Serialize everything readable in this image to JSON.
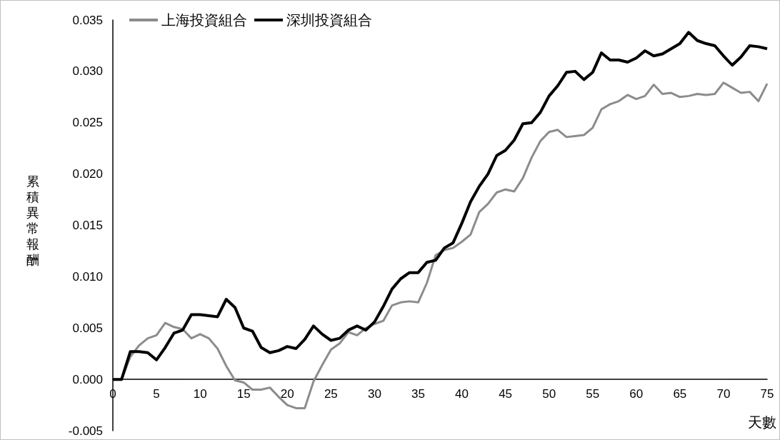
{
  "chart_data": {
    "type": "line",
    "xlabel": "天數",
    "ylabel": "累積異常報酬",
    "x": [
      0,
      1,
      2,
      3,
      4,
      5,
      6,
      7,
      8,
      9,
      10,
      11,
      12,
      13,
      14,
      15,
      16,
      17,
      18,
      19,
      20,
      21,
      22,
      23,
      24,
      25,
      26,
      27,
      28,
      29,
      30,
      31,
      32,
      33,
      34,
      35,
      36,
      37,
      38,
      39,
      40,
      41,
      42,
      43,
      44,
      45,
      46,
      47,
      48,
      49,
      50,
      51,
      52,
      53,
      54,
      55,
      56,
      57,
      58,
      59,
      60,
      61,
      62,
      63,
      64,
      65,
      66,
      67,
      68,
      69,
      70,
      71,
      72,
      73,
      74,
      75
    ],
    "series": [
      {
        "name": "上海投資組合",
        "color": "#8c8c8c",
        "values": [
          0,
          0,
          0.0022,
          0.0033,
          0.004,
          0.0043,
          0.0055,
          0.0051,
          0.0049,
          0.004,
          0.0044,
          0.004,
          0.003,
          0.0013,
          -0.0001,
          -0.0003,
          -0.001,
          -0.001,
          -0.0008,
          -0.0017,
          -0.0025,
          -0.0028,
          -0.0028,
          -0.0002,
          0.0014,
          0.0029,
          0.0035,
          0.0046,
          0.0043,
          0.005,
          0.0054,
          0.0057,
          0.0072,
          0.0075,
          0.0076,
          0.0075,
          0.0094,
          0.0121,
          0.0126,
          0.0128,
          0.0134,
          0.0141,
          0.0163,
          0.0171,
          0.0182,
          0.0185,
          0.0183,
          0.0196,
          0.0216,
          0.0232,
          0.0241,
          0.0243,
          0.0236,
          0.0237,
          0.0238,
          0.0245,
          0.0263,
          0.0268,
          0.0271,
          0.0277,
          0.0273,
          0.0276,
          0.0287,
          0.0278,
          0.0279,
          0.0275,
          0.0276,
          0.0278,
          0.0277,
          0.0278,
          0.0289,
          0.0284,
          0.0279,
          0.028,
          0.0271,
          0.0288
        ]
      },
      {
        "name": "深圳投資組合",
        "color": "#000000",
        "values": [
          0,
          0,
          0.0027,
          0.0027,
          0.0026,
          0.0019,
          0.0031,
          0.0045,
          0.0048,
          0.0063,
          0.0063,
          0.0062,
          0.0061,
          0.0078,
          0.007,
          0.005,
          0.0047,
          0.0031,
          0.0026,
          0.0028,
          0.0032,
          0.003,
          0.0039,
          0.0052,
          0.0044,
          0.0038,
          0.004,
          0.0048,
          0.0052,
          0.0048,
          0.0056,
          0.0071,
          0.0088,
          0.0098,
          0.0104,
          0.0104,
          0.0114,
          0.0116,
          0.0128,
          0.0133,
          0.0152,
          0.0173,
          0.0188,
          0.02,
          0.0218,
          0.0223,
          0.0233,
          0.0249,
          0.025,
          0.026,
          0.0276,
          0.0286,
          0.0299,
          0.03,
          0.0292,
          0.0299,
          0.0318,
          0.0311,
          0.0311,
          0.0309,
          0.0313,
          0.032,
          0.0315,
          0.0317,
          0.0322,
          0.0327,
          0.0338,
          0.033,
          0.0327,
          0.0325,
          0.0315,
          0.0306,
          0.0314,
          0.0325,
          0.0324,
          0.0322
        ]
      }
    ],
    "xlim": [
      0,
      75
    ],
    "xticks": [
      0,
      5,
      10,
      15,
      20,
      25,
      30,
      35,
      40,
      45,
      50,
      55,
      60,
      65,
      70,
      75
    ],
    "ylim": [
      -0.005,
      0.035
    ],
    "yticks": [
      {
        "value": -0.005,
        "label": "-0.005"
      },
      {
        "value": 0,
        "label": "0.000"
      },
      {
        "value": 0.005,
        "label": "0.005"
      },
      {
        "value": 0.01,
        "label": "0.010"
      },
      {
        "value": 0.015,
        "label": "0.015"
      },
      {
        "value": 0.02,
        "label": "0.020"
      },
      {
        "value": 0.025,
        "label": "0.025"
      },
      {
        "value": 0.03,
        "label": "0.030"
      },
      {
        "value": 0.035,
        "label": "0.035"
      }
    ],
    "grid": false,
    "legend": "top left",
    "marker": "none",
    "line_style": "solid"
  }
}
